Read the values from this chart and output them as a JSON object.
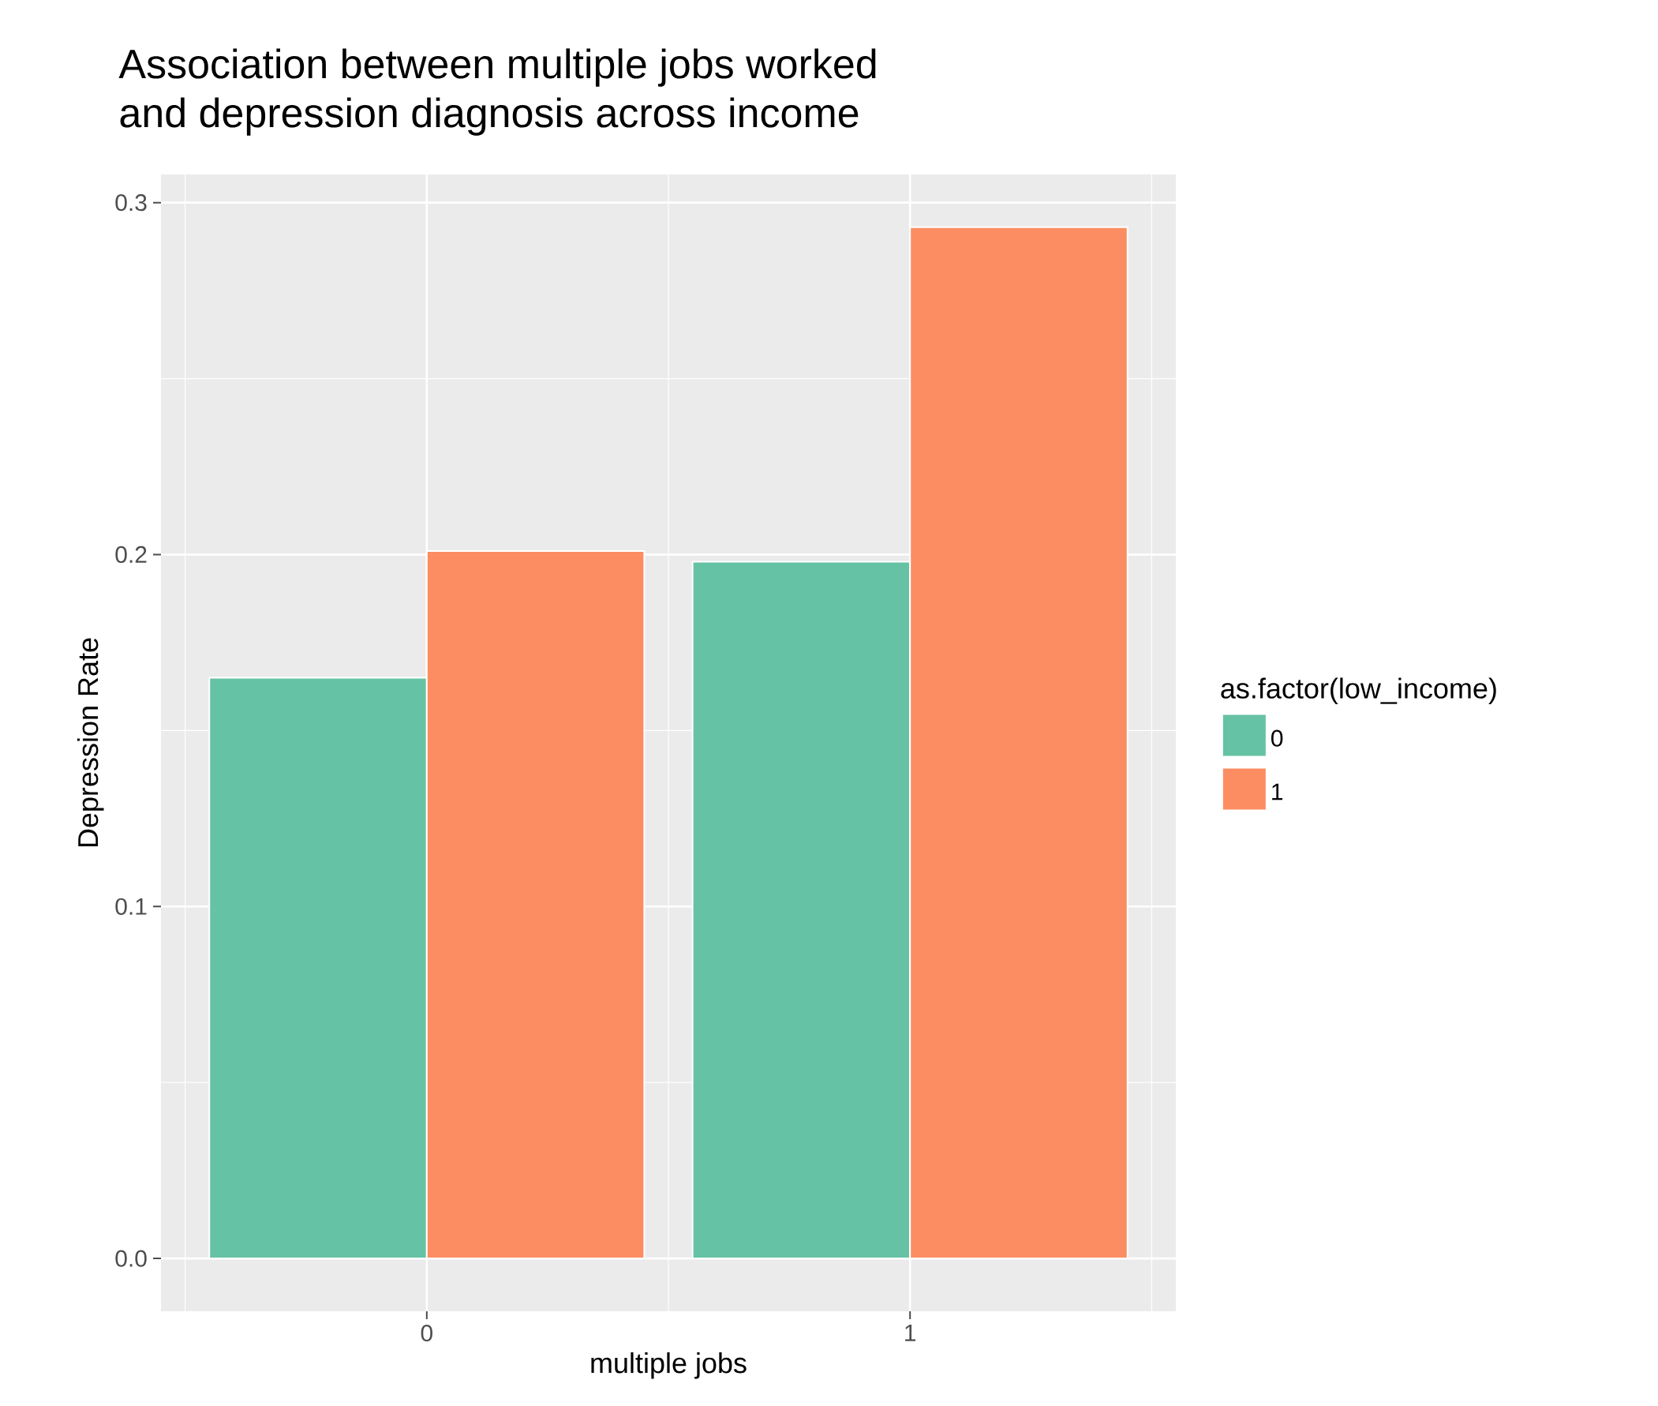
{
  "chart_data": {
    "type": "bar",
    "title": "Association between multiple jobs worked\nand depression diagnosis across income",
    "xlabel": "multiple jobs",
    "ylabel": "Depression Rate",
    "legend_title": "as.factor(low_income)",
    "categories": [
      "0",
      "1"
    ],
    "series": [
      {
        "name": "0",
        "color": "#66c2a5",
        "values": [
          0.165,
          0.198
        ]
      },
      {
        "name": "1",
        "color": "#fc8d62",
        "values": [
          0.201,
          0.293
        ]
      }
    ],
    "ylim": [
      -0.015,
      0.308
    ],
    "yticks": [
      {
        "value": 0,
        "label": "0.0"
      },
      {
        "value": 0.1,
        "label": "0.1"
      },
      {
        "value": 0.2,
        "label": "0.2"
      },
      {
        "value": 0.3,
        "label": "0.3"
      }
    ],
    "grid": true,
    "legend": "right"
  }
}
